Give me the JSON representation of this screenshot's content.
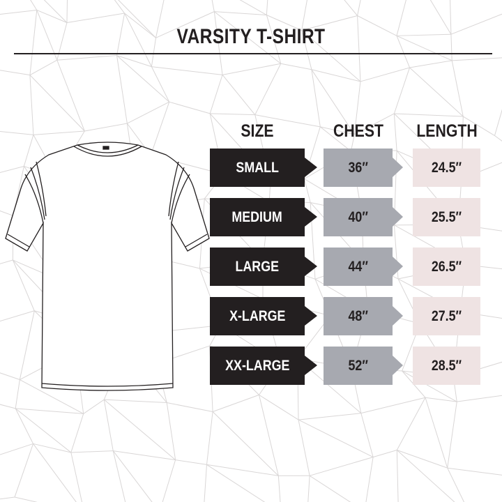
{
  "title": "VARSITY T-SHIRT",
  "headers": {
    "size": "SIZE",
    "chest": "CHEST",
    "length": "LENGTH"
  },
  "rows": [
    {
      "size": "SMALL",
      "chest": "36″",
      "length": "24.5″"
    },
    {
      "size": "MEDIUM",
      "chest": "40″",
      "length": "25.5″"
    },
    {
      "size": "LARGE",
      "chest": "44″",
      "length": "26.5″"
    },
    {
      "size": "X-LARGE",
      "chest": "48″",
      "length": "27.5″"
    },
    {
      "size": "XX-LARGE",
      "chest": "52″",
      "length": "28.5″"
    }
  ],
  "colors": {
    "size_bg": "#231f20",
    "chest_bg": "#a7a9b0",
    "length_bg": "#efe3e3",
    "pattern": "#d9d6d6"
  }
}
